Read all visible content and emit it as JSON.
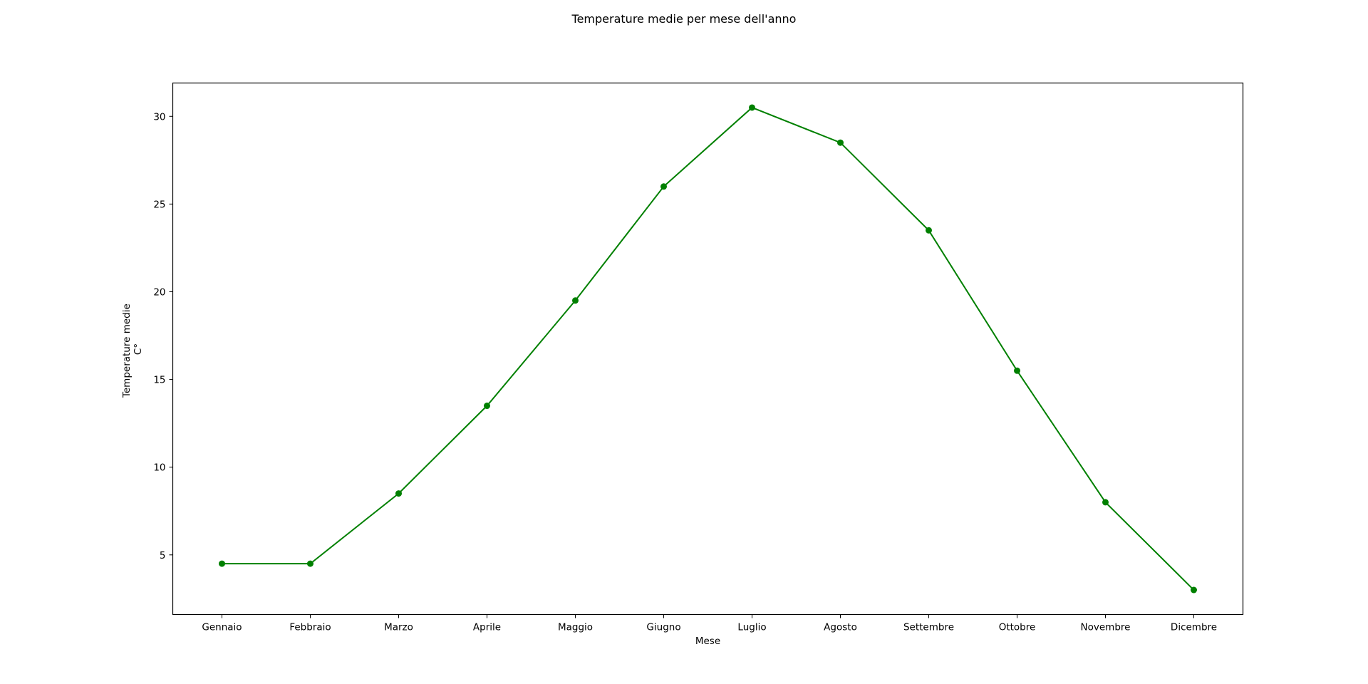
{
  "chart_data": {
    "type": "line",
    "title": "Temperature medie per mese dell'anno",
    "xlabel": "Mese",
    "ylabel": [
      "Temperature medie",
      "C°"
    ],
    "categories": [
      "Gennaio",
      "Febbraio",
      "Marzo",
      "Aprile",
      "Maggio",
      "Giugno",
      "Luglio",
      "Agosto",
      "Settembre",
      "Ottobre",
      "Novembre",
      "Dicembre"
    ],
    "values": [
      4.5,
      4.5,
      8.5,
      13.5,
      19.5,
      26.0,
      30.5,
      28.5,
      23.5,
      15.5,
      8.0,
      3.0
    ],
    "ylim": [
      1.6,
      31.9
    ],
    "yticks": [
      5,
      10,
      15,
      20,
      25,
      30
    ],
    "grid": false,
    "line_color": "#008000",
    "marker": "circle"
  }
}
